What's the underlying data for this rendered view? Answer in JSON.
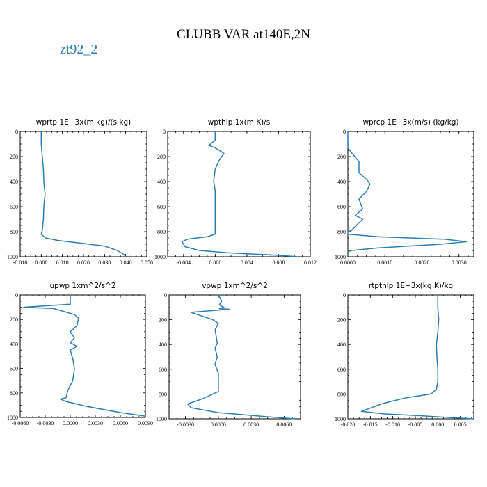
{
  "figure": {
    "title": "CLUBB VAR at140E,2N",
    "legend": {
      "label": "zt92_2",
      "color": "#2d7db3"
    },
    "line_color": "#2d7db3"
  },
  "chart_data": [
    {
      "type": "line",
      "title": "wprtp   1E−3x(m kg)/(s kg)",
      "xlim": [
        -0.01,
        0.05
      ],
      "ylim": [
        1000,
        0
      ],
      "xticks": [
        "-0.010",
        "0.000",
        "0.010",
        "0.020",
        "0.030",
        "0.040",
        "0.050"
      ],
      "xtick_values": [
        -0.01,
        0,
        0.01,
        0.02,
        0.03,
        0.04,
        0.05
      ],
      "yticks": [
        0,
        200,
        400,
        600,
        800,
        1000
      ],
      "series": [
        {
          "x": [
            0.0,
            0.0,
            0.0005,
            0.001,
            0.0012,
            0.0015,
            0.0018,
            0.0015,
            0.0012,
            0.001,
            0.0005,
            0.0,
            0.002,
            0.008,
            0.018,
            0.03,
            0.036,
            0.039,
            0.04
          ],
          "y": [
            0,
            100,
            200,
            300,
            400,
            450,
            500,
            550,
            600,
            700,
            790,
            820,
            850,
            870,
            890,
            915,
            950,
            980,
            1000
          ]
        }
      ]
    },
    {
      "type": "line",
      "title": "wpthlp   1x(m K)/s",
      "xlim": [
        -0.006,
        0.012
      ],
      "ylim": [
        1000,
        0
      ],
      "xticks": [
        "-0.004",
        "0.000",
        "0.004",
        "0.008",
        "0.012"
      ],
      "xtick_values": [
        -0.004,
        0,
        0.004,
        0.008,
        0.012
      ],
      "yticks": [
        0,
        200,
        400,
        600,
        800,
        1000
      ],
      "series": [
        {
          "x": [
            0.0,
            0.0,
            -0.0008,
            0.0,
            0.0005,
            0.0011,
            0.0005,
            0.0,
            -0.0002,
            0.0,
            0.0,
            0.0,
            0.0,
            -0.001,
            -0.0035,
            -0.0042,
            -0.0038,
            -0.002,
            0.002,
            0.007,
            0.0105
          ],
          "y": [
            0,
            70,
            110,
            130,
            150,
            175,
            230,
            300,
            400,
            470,
            600,
            720,
            820,
            840,
            860,
            880,
            920,
            950,
            970,
            985,
            1000
          ]
        }
      ]
    },
    {
      "type": "line",
      "title": "wprcp   1E−3x(m/s)  (kg/kg)",
      "xlim": [
        0,
        0.0034
      ],
      "ylim": [
        1000,
        0
      ],
      "xticks": [
        "0.0000",
        "0.0010",
        "0.0020",
        "0.0030"
      ],
      "xtick_values": [
        0,
        0.001,
        0.002,
        0.003
      ],
      "yticks": [
        0,
        200,
        400,
        600,
        800,
        1000
      ],
      "series": [
        {
          "x": [
            0.0,
            0.0,
            0.0001,
            0.0003,
            0.0003,
            0.0005,
            0.0006,
            0.0005,
            0.0003,
            0.0004,
            0.0002,
            0.0004,
            0.0002,
            0.0001,
            0.0,
            0.0,
            0.0008,
            0.0026,
            0.0032,
            0.0025,
            0.0008,
            0.0001,
            0.0
          ],
          "y": [
            0,
            130,
            170,
            240,
            330,
            380,
            420,
            480,
            540,
            620,
            670,
            700,
            760,
            790,
            800,
            820,
            840,
            860,
            880,
            900,
            930,
            950,
            960
          ]
        }
      ]
    },
    {
      "type": "line",
      "title": "upwp   1xm^2/s^2",
      "xlim": [
        -0.006,
        0.009
      ],
      "ylim": [
        1000,
        0
      ],
      "xticks": [
        "-0.0060",
        "-0.0030",
        "0.0000",
        "0.0030",
        "0.0060",
        "0.0090"
      ],
      "xtick_values": [
        -0.006,
        -0.003,
        0,
        0.003,
        0.006,
        0.009
      ],
      "yticks": [
        0,
        200,
        400,
        600,
        800,
        1000
      ],
      "series": [
        {
          "x": [
            0.0,
            0.0,
            -0.0056,
            -0.002,
            -0.0005,
            0.0005,
            0.001,
            0.0008,
            0.0,
            0.0005,
            0.0,
            0.0008,
            0.0,
            0.0003,
            0.0005,
            0.0003,
            -0.0003,
            -0.0005,
            -0.0012,
            -0.0005,
            0.002,
            0.006,
            0.009
          ],
          "y": [
            0,
            75,
            100,
            110,
            140,
            160,
            190,
            250,
            300,
            350,
            390,
            420,
            450,
            520,
            600,
            700,
            780,
            840,
            850,
            870,
            910,
            960,
            990
          ]
        }
      ]
    },
    {
      "type": "line",
      "title": "vpwp   1xm^2/s^2",
      "xlim": [
        -0.0045,
        0.0075
      ],
      "ylim": [
        1000,
        0
      ],
      "xticks": [
        "-0.0030",
        "0.0000",
        "0.0030",
        "0.0060"
      ],
      "xtick_values": [
        -0.003,
        0,
        0.003,
        0.006
      ],
      "yticks": [
        0,
        200,
        400,
        600,
        800,
        1000
      ],
      "series": [
        {
          "x": [
            0.0,
            0.0003,
            0.0001,
            0.0005,
            0.0001,
            0.001,
            -0.0025,
            -0.0005,
            0.0,
            -0.0003,
            -0.0002,
            -0.0001,
            -0.0003,
            -0.0001,
            -0.0003,
            0.0,
            0.0,
            0.0,
            -0.0015,
            -0.0028,
            -0.0025,
            0.0,
            0.004,
            0.007
          ],
          "y": [
            0,
            50,
            80,
            100,
            110,
            115,
            140,
            200,
            230,
            280,
            330,
            390,
            430,
            500,
            560,
            630,
            700,
            780,
            840,
            880,
            910,
            950,
            980,
            1000
          ]
        }
      ]
    },
    {
      "type": "line",
      "title": "rtpthlp   1E−3x(kg K)/kg",
      "xlim": [
        -0.02,
        0.008
      ],
      "ylim": [
        1000,
        0
      ],
      "xticks": [
        "-0.020",
        "-0.015",
        "-0.010",
        "-0.005",
        "0.000",
        "0.005"
      ],
      "xtick_values": [
        -0.02,
        -0.015,
        -0.01,
        -0.005,
        0,
        0.005
      ],
      "yticks": [
        0,
        200,
        400,
        600,
        800,
        1000
      ],
      "series": [
        {
          "x": [
            0.0,
            0.0,
            0.0002,
            0.0,
            -0.0003,
            -0.0002,
            0.0,
            0.0,
            -0.0003,
            -0.0015,
            -0.007,
            -0.0105,
            -0.0125,
            -0.017,
            -0.012,
            -0.004,
            0.003,
            0.008
          ],
          "y": [
            0,
            100,
            200,
            300,
            400,
            500,
            600,
            700,
            760,
            800,
            830,
            860,
            880,
            940,
            960,
            975,
            990,
            1000
          ]
        }
      ]
    }
  ]
}
